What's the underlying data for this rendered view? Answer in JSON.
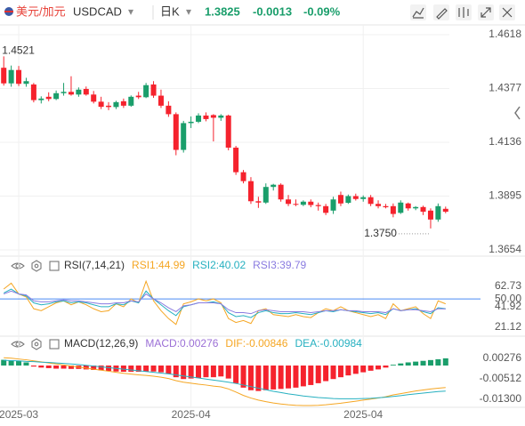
{
  "header": {
    "pair": "美元/加元",
    "symbol": "USDCAD",
    "period": "日K",
    "price": "1.3825",
    "change": "-0.0013",
    "change_pct": "-0.09%",
    "color": "#1a9e6b"
  },
  "chart_data": [
    {
      "type": "candlestick",
      "categories": [
        null,
        null,
        "2025-03",
        null,
        null,
        null,
        null,
        null,
        null,
        null,
        null,
        null,
        null,
        null,
        null,
        null,
        null,
        null,
        null,
        null,
        null,
        null,
        null,
        null,
        null,
        "2025-04",
        null,
        null,
        null,
        null,
        null,
        null,
        null,
        null,
        null,
        null,
        null,
        null,
        null,
        null,
        null,
        null,
        null,
        null,
        null,
        null,
        null,
        null,
        "2025-04",
        null,
        null,
        null,
        null,
        null,
        null,
        null,
        null,
        null,
        null,
        null
      ],
      "open": [
        1.447,
        1.44,
        1.446,
        1.4398,
        1.4395,
        1.4325,
        1.434,
        1.433,
        1.4356,
        1.4362,
        1.435,
        1.4375,
        1.435,
        1.4318,
        1.43,
        1.4294,
        1.432,
        1.43,
        1.4345,
        1.4338,
        1.4395,
        1.4345,
        1.43,
        1.4262,
        1.4102,
        1.4222,
        1.4228,
        1.4256,
        1.4258,
        1.4246,
        1.4256,
        1.4112,
        1.4002,
        1.3962,
        1.3872,
        1.3866,
        1.3936,
        1.3946,
        1.388,
        1.386,
        1.3856,
        1.387,
        1.3855,
        1.385,
        1.383,
        1.39,
        1.3865,
        1.3895,
        1.3882,
        1.389,
        1.386,
        1.385,
        1.385,
        1.382,
        1.3862,
        1.384,
        1.3846,
        1.383,
        1.379,
        1.3838
      ],
      "high": [
        1.4521,
        1.448,
        1.4478,
        1.4425,
        1.4402,
        1.4342,
        1.436,
        1.4368,
        1.4402,
        1.4432,
        1.4382,
        1.4386,
        1.4366,
        1.434,
        1.4316,
        1.4322,
        1.4332,
        1.4346,
        1.4362,
        1.4402,
        1.441,
        1.4372,
        1.432,
        1.427,
        1.4232,
        1.4252,
        1.4266,
        1.427,
        1.4262,
        1.4262,
        1.426,
        1.412,
        1.4012,
        1.398,
        1.3892,
        1.3952,
        1.395,
        1.3952,
        1.39,
        1.388,
        1.3876,
        1.388,
        1.3866,
        1.386,
        1.3892,
        1.3915,
        1.3902,
        1.3906,
        1.3898,
        1.39,
        1.3876,
        1.386,
        1.3862,
        1.3876,
        1.3866,
        1.385,
        1.3852,
        1.384,
        1.3862,
        1.3848
      ],
      "low": [
        1.439,
        1.4385,
        1.4388,
        1.4385,
        1.4315,
        1.431,
        1.432,
        1.4325,
        1.4345,
        1.4345,
        1.434,
        1.4345,
        1.431,
        1.4285,
        1.428,
        1.4285,
        1.429,
        1.4295,
        1.433,
        1.4334,
        1.4335,
        1.429,
        1.425,
        1.4078,
        1.409,
        1.42,
        1.4222,
        1.423,
        1.414,
        1.4232,
        1.41,
        1.399,
        1.3952,
        1.386,
        1.3842,
        1.386,
        1.392,
        1.387,
        1.385,
        1.385,
        1.385,
        1.3845,
        1.383,
        1.381,
        1.3815,
        1.385,
        1.386,
        1.3875,
        1.387,
        1.385,
        1.384,
        1.384,
        1.38,
        1.3815,
        1.383,
        1.3832,
        1.381,
        1.375,
        1.378,
        1.3818
      ],
      "close": [
        1.44,
        1.446,
        1.4398,
        1.441,
        1.4325,
        1.4332,
        1.433,
        1.4356,
        1.4362,
        1.435,
        1.4372,
        1.435,
        1.4318,
        1.4295,
        1.4294,
        1.4316,
        1.43,
        1.434,
        1.4338,
        1.4392,
        1.4345,
        1.43,
        1.4262,
        1.4102,
        1.4222,
        1.4228,
        1.4256,
        1.424,
        1.4246,
        1.4256,
        1.4112,
        1.4002,
        1.3962,
        1.3872,
        1.3866,
        1.3936,
        1.3946,
        1.388,
        1.386,
        1.3856,
        1.387,
        1.3855,
        1.385,
        1.382,
        1.388,
        1.3862,
        1.3895,
        1.3882,
        1.389,
        1.386,
        1.385,
        1.3845,
        1.3815,
        1.3866,
        1.384,
        1.3846,
        1.3825,
        1.379,
        1.385,
        1.3825
      ],
      "up_color": "#1a9e6b",
      "down_color": "#f5222d",
      "ylim": [
        1.3626,
        1.4662
      ],
      "yticks": [
        1.4618,
        1.4377,
        1.4136,
        1.3895,
        1.3654
      ],
      "grid": true,
      "annotations": [
        {
          "label": "1.4521",
          "at": "high"
        },
        {
          "label": "1.3750",
          "at": "low"
        }
      ]
    },
    {
      "type": "line",
      "title": "RSI(7,14,21)",
      "series": [
        {
          "name": "RSI1:44.99",
          "color": "#f5a623",
          "values": [
            60,
            66,
            55,
            52,
            40,
            38,
            42,
            46,
            48,
            44,
            47,
            44,
            40,
            37,
            38,
            45,
            42,
            50,
            46,
            68,
            48,
            38,
            30,
            24,
            45,
            47,
            50,
            48,
            50,
            46,
            30,
            26,
            28,
            25,
            38,
            40,
            34,
            33,
            32,
            34,
            32,
            31,
            36,
            40,
            38,
            42,
            38,
            36,
            34,
            32,
            34,
            30,
            45,
            38,
            40,
            42,
            35,
            30,
            48,
            44.99
          ]
        },
        {
          "name": "RSI2:40.02",
          "color": "#26b0c0",
          "values": [
            56,
            60,
            55,
            53,
            46,
            44,
            45,
            47,
            48,
            46,
            47,
            46,
            44,
            42,
            42,
            45,
            44,
            48,
            46,
            58,
            50,
            44,
            38,
            33,
            42,
            44,
            46,
            46,
            47,
            45,
            36,
            32,
            33,
            31,
            36,
            38,
            36,
            35,
            35,
            36,
            35,
            34,
            36,
            38,
            37,
            39,
            38,
            37,
            36,
            35,
            36,
            34,
            40,
            38,
            39,
            40,
            37,
            35,
            41,
            40.02
          ]
        },
        {
          "name": "RSI3:39.79",
          "color": "#8a7be0",
          "values": [
            55,
            58,
            55,
            54,
            48,
            47,
            47,
            48,
            49,
            48,
            48,
            47,
            46,
            45,
            45,
            46,
            46,
            48,
            47,
            55,
            50,
            46,
            41,
            37,
            43,
            44,
            46,
            46,
            46,
            45,
            39,
            36,
            36,
            35,
            38,
            39,
            38,
            37,
            37,
            37,
            37,
            36,
            37,
            38,
            38,
            39,
            38,
            38,
            37,
            37,
            37,
            36,
            40,
            38,
            39,
            39,
            38,
            37,
            40,
            39.79
          ]
        }
      ],
      "ylim": [
        12.07,
        73.6
      ],
      "yticks": [
        62.73,
        {
          "value": 50,
          "label": "50.00",
          "color": "#4a8af4"
        },
        41.92,
        21.12
      ]
    },
    {
      "type": "bar",
      "title": "MACD(12,26,9)",
      "name": "MACD:0.00276",
      "name_color": "#9b6fd6",
      "values": [
        0.0022,
        0.002,
        0.0018,
        0.0012,
        -0.0004,
        -0.0008,
        -0.001,
        -0.0012,
        -0.0012,
        -0.0013,
        -0.0013,
        -0.0015,
        -0.0017,
        -0.0019,
        -0.0021,
        -0.0023,
        -0.0024,
        -0.0024,
        -0.0024,
        -0.0023,
        -0.0023,
        -0.0026,
        -0.0032,
        -0.0045,
        -0.0052,
        -0.005,
        -0.0048,
        -0.0045,
        -0.0045,
        -0.0042,
        -0.005,
        -0.0068,
        -0.0085,
        -0.0095,
        -0.0098,
        -0.0095,
        -0.0092,
        -0.009,
        -0.0088,
        -0.0085,
        -0.008,
        -0.0075,
        -0.0068,
        -0.006,
        -0.0052,
        -0.0045,
        -0.0038,
        -0.0032,
        -0.0026,
        -0.002,
        -0.0015,
        -0.0008,
        0.0003,
        0.0008,
        0.0012,
        0.0015,
        0.0018,
        0.0021,
        0.0024,
        0.00276
      ],
      "up_color": "#1a9e6b",
      "down_color": "#f5222d",
      "series": [
        {
          "name": "DIF:-0.00846",
          "color": "#f5a623",
          "values": [
            0.003,
            0.0028,
            0.0025,
            0.0022,
            0.0018,
            0.0014,
            0.001,
            0.0006,
            0.0002,
            -0.0002,
            -0.0006,
            -0.001,
            -0.0014,
            -0.0018,
            -0.0022,
            -0.0026,
            -0.003,
            -0.0033,
            -0.0036,
            -0.0038,
            -0.0041,
            -0.0045,
            -0.005,
            -0.0058,
            -0.0064,
            -0.0068,
            -0.0072,
            -0.0075,
            -0.0079,
            -0.0082,
            -0.009,
            -0.0102,
            -0.0115,
            -0.0125,
            -0.0133,
            -0.0139,
            -0.0144,
            -0.0148,
            -0.0151,
            -0.0153,
            -0.0154,
            -0.0154,
            -0.0153,
            -0.0151,
            -0.0148,
            -0.0145,
            -0.0141,
            -0.0137,
            -0.0133,
            -0.0129,
            -0.0125,
            -0.012,
            -0.0113,
            -0.0108,
            -0.0103,
            -0.0098,
            -0.0094,
            -0.009,
            -0.0087,
            -0.00846
          ]
        },
        {
          "name": "DEA:-0.00984",
          "color": "#26b0c0",
          "values": [
            0.002,
            0.0019,
            0.0018,
            0.0016,
            0.0015,
            0.0013,
            0.0012,
            0.001,
            0.0008,
            0.0006,
            0.0004,
            0.0001,
            -0.0002,
            -0.0005,
            -0.0008,
            -0.0011,
            -0.0014,
            -0.0017,
            -0.002,
            -0.0023,
            -0.0026,
            -0.0029,
            -0.0032,
            -0.0036,
            -0.004,
            -0.0044,
            -0.0048,
            -0.0052,
            -0.0056,
            -0.006,
            -0.0064,
            -0.0069,
            -0.0075,
            -0.0081,
            -0.0087,
            -0.0093,
            -0.0099,
            -0.0104,
            -0.0109,
            -0.0113,
            -0.0117,
            -0.012,
            -0.0123,
            -0.0125,
            -0.0127,
            -0.0128,
            -0.0128,
            -0.0128,
            -0.0127,
            -0.0126,
            -0.0124,
            -0.0122,
            -0.0119,
            -0.0116,
            -0.0112,
            -0.0109,
            -0.0106,
            -0.0103,
            -0.01,
            -0.00984
          ]
        }
      ],
      "ylim": [
        -0.01607,
        0.00547
      ],
      "yticks": [
        0.00276,
        -0.00512,
        {
          "value": -0.013,
          "label": "-0.01300"
        }
      ]
    }
  ]
}
